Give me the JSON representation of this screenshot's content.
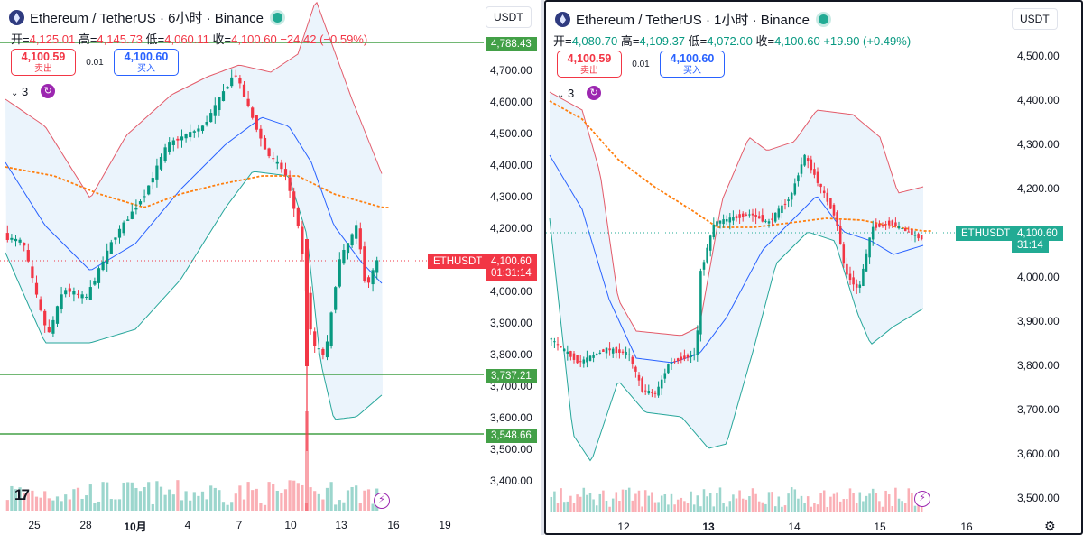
{
  "left": {
    "title": "Ethereum / TetherUS · 6小时 · Binance",
    "ohlc": {
      "o_label": "开=",
      "o": "4,125.01",
      "h_label": "高=",
      "h": "4,145.73",
      "l_label": "低=",
      "l": "4,060.11",
      "c_label": "收=",
      "c": "4,100.60",
      "chg": "−24.42 (−0.59%)"
    },
    "trade": {
      "sell_price": "4,100.59",
      "sell_label": "卖出",
      "spread": "0.01",
      "buy_price": "4,100.60",
      "buy_label": "买入"
    },
    "indicator_count": "3",
    "currency": "USDT",
    "price_axis": [
      "4,700.00",
      "4,600.00",
      "4,500.00",
      "4,400.00",
      "4,300.00",
      "4,200.00",
      "4,000.00",
      "3,900.00",
      "3,800.00",
      "3,700.00",
      "3,600.00",
      "3,500.00",
      "3,400.00"
    ],
    "level_tags": [
      "4,788.43",
      "3,737.21",
      "3,548.66"
    ],
    "symbol_tag": "ETHUSDT",
    "last_price": "4,100.60",
    "countdown": "01:31:14",
    "time_axis": [
      "25",
      "28",
      "10月",
      "4",
      "7",
      "10",
      "13",
      "16",
      "19"
    ]
  },
  "right": {
    "title": "Ethereum / TetherUS · 1小时 · Binance",
    "ohlc": {
      "o_label": "开=",
      "o": "4,080.70",
      "h_label": "高=",
      "h": "4,109.37",
      "l_label": "低=",
      "l": "4,072.00",
      "c_label": "收=",
      "c": "4,100.60",
      "chg": "+19.90 (+0.49%)"
    },
    "trade": {
      "sell_price": "4,100.59",
      "sell_label": "卖出",
      "spread": "0.01",
      "buy_price": "4,100.60",
      "buy_label": "买入"
    },
    "indicator_count": "3",
    "currency": "USDT",
    "price_axis": [
      "4,500.00",
      "4,400.00",
      "4,300.00",
      "4,200.00",
      "4,000.00",
      "3,900.00",
      "3,800.00",
      "3,700.00",
      "3,600.00",
      "3,500.00"
    ],
    "symbol_tag": "ETHUSDT",
    "last_price": "4,100.60",
    "countdown": "31:14",
    "time_axis": [
      "12",
      "13",
      "14",
      "15",
      "16"
    ]
  },
  "colors": {
    "up": "#089981",
    "down": "#f23645",
    "band": "#e3f0fb",
    "ma": "#ff7f0e",
    "mid": "#2962ff",
    "level": "#4caf50"
  }
}
